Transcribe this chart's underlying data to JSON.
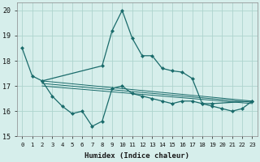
{
  "xlabel": "Humidex (Indice chaleur)",
  "background_color": "#d6eeeb",
  "grid_color": "#aed4ce",
  "line_color": "#1a6b6b",
  "xlim": [
    -0.5,
    23.5
  ],
  "ylim": [
    15,
    20.3
  ],
  "yticks": [
    15,
    16,
    17,
    18,
    19,
    20
  ],
  "xticks": [
    0,
    1,
    2,
    3,
    4,
    5,
    6,
    7,
    8,
    9,
    10,
    11,
    12,
    13,
    14,
    15,
    16,
    17,
    18,
    19,
    20,
    21,
    22,
    23
  ],
  "series1_x": [
    0,
    1,
    2,
    8,
    9,
    10,
    11,
    12,
    13,
    14,
    15,
    16,
    17,
    18,
    19,
    23
  ],
  "series1_y": [
    18.5,
    17.4,
    17.2,
    17.8,
    19.2,
    20.0,
    18.9,
    18.2,
    18.2,
    17.7,
    17.6,
    17.55,
    17.3,
    16.3,
    16.3,
    16.4
  ],
  "series2_x": [
    2,
    3,
    4,
    5,
    6,
    7,
    8,
    9,
    10,
    11,
    12,
    13,
    14,
    15,
    16,
    17,
    18,
    19,
    20,
    21,
    22,
    23
  ],
  "series2_y": [
    17.2,
    16.6,
    16.2,
    15.9,
    16.0,
    15.4,
    15.6,
    16.9,
    17.0,
    16.7,
    16.6,
    16.5,
    16.4,
    16.3,
    16.4,
    16.4,
    16.3,
    16.2,
    16.1,
    16.0,
    16.1,
    16.4
  ],
  "trend1_x": [
    2,
    23
  ],
  "trend1_y": [
    17.2,
    16.4
  ],
  "trend2_x": [
    2,
    23
  ],
  "trend2_y": [
    17.1,
    16.35
  ],
  "trend3_x": [
    2,
    23
  ],
  "trend3_y": [
    17.0,
    16.3
  ]
}
